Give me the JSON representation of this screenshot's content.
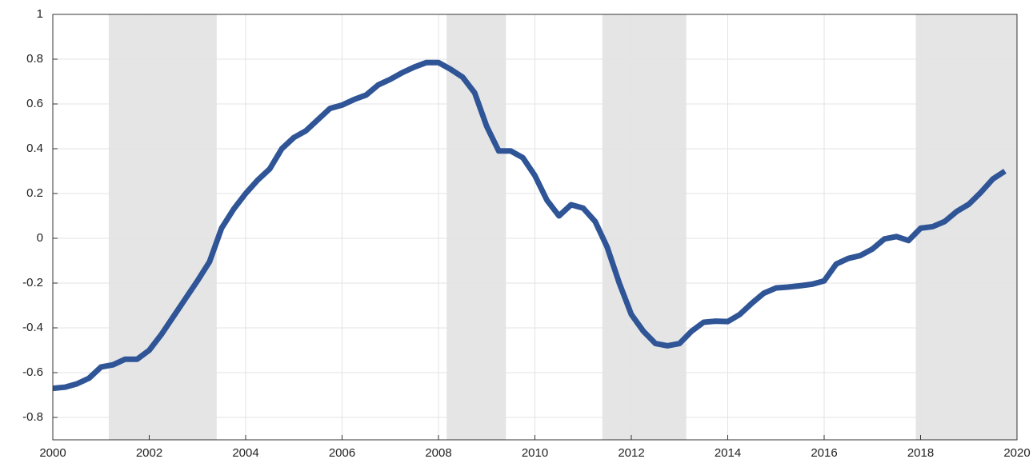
{
  "chart_data": {
    "type": "line",
    "x": [
      2000,
      2000.25,
      2000.5,
      2000.75,
      2001,
      2001.25,
      2001.5,
      2001.75,
      2002,
      2002.25,
      2002.5,
      2002.75,
      2003,
      2003.25,
      2003.5,
      2003.75,
      2004,
      2004.25,
      2004.5,
      2004.75,
      2005,
      2005.25,
      2005.5,
      2005.75,
      2006,
      2006.25,
      2006.5,
      2006.75,
      2007,
      2007.25,
      2007.5,
      2007.75,
      2008,
      2008.25,
      2008.5,
      2008.75,
      2009,
      2009.25,
      2009.5,
      2009.75,
      2010,
      2010.25,
      2010.5,
      2010.75,
      2011,
      2011.25,
      2011.5,
      2011.75,
      2012,
      2012.25,
      2012.5,
      2012.75,
      2013,
      2013.25,
      2013.5,
      2013.75,
      2014,
      2014.25,
      2014.5,
      2014.75,
      2015,
      2015.25,
      2015.5,
      2015.75,
      2016,
      2016.25,
      2016.5,
      2016.75,
      2017,
      2017.25,
      2017.5,
      2017.75,
      2018,
      2018.25,
      2018.5,
      2018.75,
      2019,
      2019.25,
      2019.5,
      2019.75
    ],
    "series": [
      {
        "color": "#2f5597",
        "values": [
          -0.67,
          -0.665,
          -0.65,
          -0.625,
          -0.575,
          -0.565,
          -0.54,
          -0.54,
          -0.5,
          -0.43,
          -0.35,
          -0.27,
          -0.19,
          -0.105,
          0.045,
          0.13,
          0.2,
          0.26,
          0.31,
          0.4,
          0.45,
          0.48,
          0.53,
          0.58,
          0.595,
          0.62,
          0.64,
          0.685,
          0.71,
          0.74,
          0.765,
          0.785,
          0.785,
          0.755,
          0.72,
          0.65,
          0.5,
          0.39,
          0.39,
          0.36,
          0.28,
          0.17,
          0.1,
          0.15,
          0.135,
          0.075,
          -0.04,
          -0.2,
          -0.34,
          -0.415,
          -0.47,
          -0.48,
          -0.47,
          -0.415,
          -0.375,
          -0.37,
          -0.372,
          -0.34,
          -0.29,
          -0.245,
          -0.222,
          -0.218,
          -0.212,
          -0.205,
          -0.19,
          -0.115,
          -0.09,
          -0.077,
          -0.048,
          -0.003,
          0.008,
          -0.01,
          0.045,
          0.052,
          0.075,
          0.12,
          0.152,
          0.205,
          0.265,
          0.3
        ]
      }
    ],
    "shaded_regions": [
      [
        2001.16,
        2003.4
      ],
      [
        2008.17,
        2009.4
      ],
      [
        2011.4,
        2013.14
      ],
      [
        2017.9,
        2020
      ]
    ],
    "shade_color": "#e5e5e5",
    "xlim": [
      2000,
      2020
    ],
    "xticks": [
      2000,
      2002,
      2004,
      2006,
      2008,
      2010,
      2012,
      2014,
      2016,
      2018,
      2020
    ],
    "ylim": [
      -0.9,
      1
    ],
    "yticks": [
      -0.8,
      -0.6,
      -0.4,
      -0.2,
      0,
      0.2,
      0.4,
      0.6,
      0.8,
      1
    ],
    "grid": true
  }
}
